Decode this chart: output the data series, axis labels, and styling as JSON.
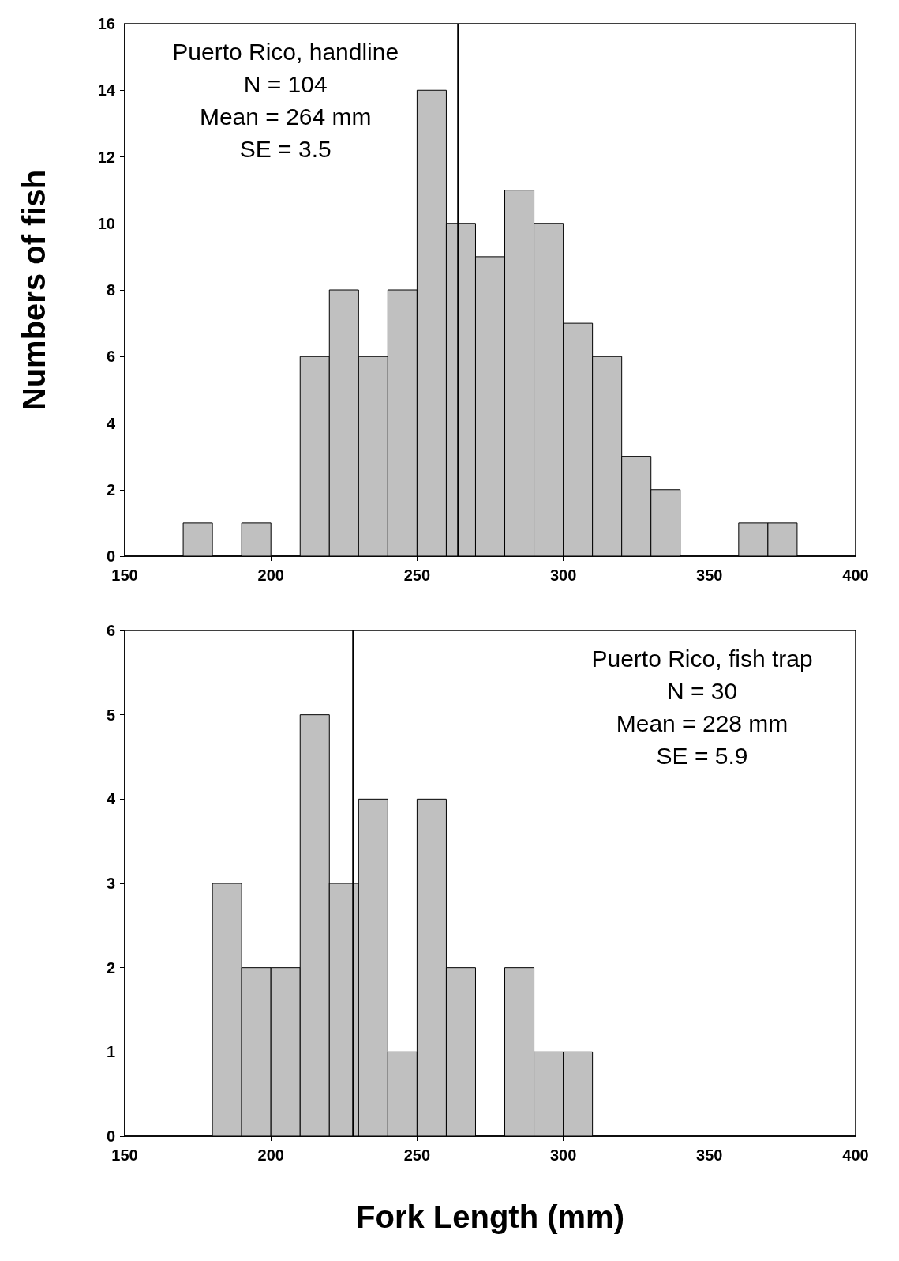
{
  "chart_data": [
    {
      "type": "histogram",
      "ylabel": "Numbers of fish",
      "bins": [
        170,
        180,
        190,
        200,
        210,
        220,
        230,
        240,
        250,
        260,
        270,
        280,
        290,
        300,
        310,
        320,
        330,
        340,
        350,
        360,
        370,
        380
      ],
      "values": [
        1,
        0,
        1,
        0,
        6,
        8,
        6,
        8,
        14,
        10,
        9,
        11,
        10,
        7,
        6,
        3,
        2,
        0,
        0,
        1,
        1
      ],
      "color": "#c0c0c0",
      "xlim": [
        150,
        400
      ],
      "xticks": [
        150,
        200,
        250,
        300,
        350,
        400
      ],
      "ylim": [
        0,
        16
      ],
      "yticks": [
        0,
        2,
        4,
        6,
        8,
        10,
        12,
        14,
        16
      ],
      "grid": false,
      "ref_lines": [
        {
          "axis": "x",
          "value": 264,
          "color": "#000000"
        }
      ],
      "annotations": [
        "Puerto Rico, handline",
        "N = 104",
        "Mean = 264 mm",
        "SE = 3.5"
      ]
    },
    {
      "type": "histogram",
      "xlabel": "Fork Length (mm)",
      "bins": [
        180,
        190,
        200,
        210,
        220,
        230,
        240,
        250,
        260,
        270,
        280,
        290,
        300,
        310
      ],
      "values": [
        3,
        2,
        2,
        5,
        3,
        4,
        1,
        4,
        2,
        0,
        2,
        1,
        1
      ],
      "color": "#c0c0c0",
      "xlim": [
        150,
        400
      ],
      "xticks": [
        150,
        200,
        250,
        300,
        350,
        400
      ],
      "ylim": [
        0,
        6
      ],
      "yticks": [
        0,
        1,
        2,
        3,
        4,
        5,
        6
      ],
      "grid": false,
      "ref_lines": [
        {
          "axis": "x",
          "value": 228,
          "color": "#000000"
        }
      ],
      "annotations": [
        "Puerto Rico, fish trap",
        "N = 30",
        "Mean = 228 mm",
        "SE = 5.9"
      ]
    }
  ]
}
